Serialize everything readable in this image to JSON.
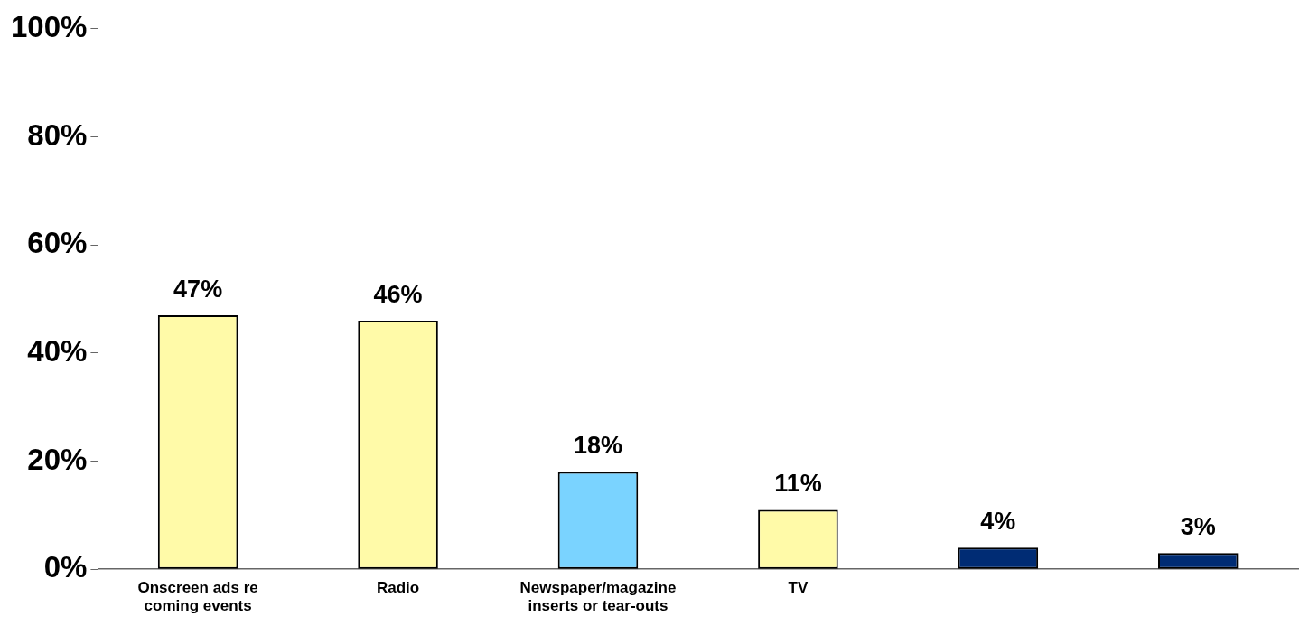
{
  "chart_data": {
    "type": "bar",
    "categories": [
      "Onscreen ads re coming events",
      "Radio",
      "Newspaper/magazine inserts or tear-outs",
      "TV",
      null,
      null
    ],
    "values": [
      47,
      46,
      18,
      11,
      4,
      3
    ],
    "colors": [
      "#fffaa8",
      "#fffaa8",
      "#7ad3ff",
      "#fffaa8",
      "#002c74",
      "#002c74"
    ],
    "value_labels": [
      "47%",
      "46%",
      "18%",
      "11%",
      "4%",
      "3%"
    ],
    "ylim": [
      0,
      100
    ],
    "yticks": [
      {
        "value": 0,
        "label": "0%"
      },
      {
        "value": 20,
        "label": "20%"
      },
      {
        "value": 40,
        "label": "40%"
      },
      {
        "value": 60,
        "label": "60%"
      },
      {
        "value": 80,
        "label": "80%"
      },
      {
        "value": 100,
        "label": "100%"
      }
    ],
    "grid": false
  }
}
